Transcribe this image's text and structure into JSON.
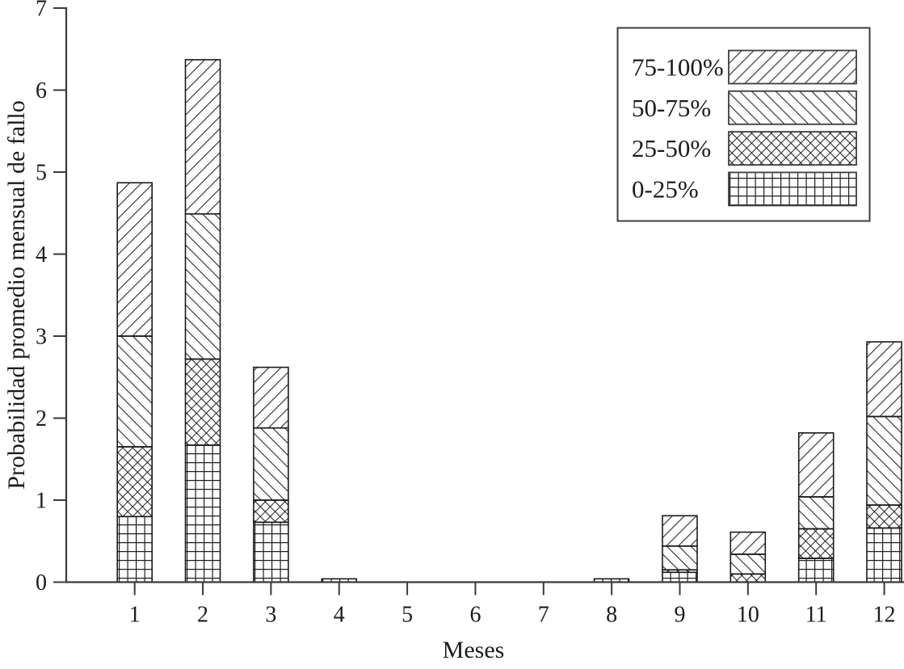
{
  "chart_data": {
    "type": "bar",
    "stacked": true,
    "title": "",
    "xlabel": "Meses",
    "ylabel": "Probabilidad promedio mensual de fallo",
    "ylim": [
      0,
      7
    ],
    "yticks": [
      0,
      1,
      2,
      3,
      4,
      5,
      6,
      7
    ],
    "categories": [
      "1",
      "2",
      "3",
      "4",
      "5",
      "6",
      "7",
      "8",
      "9",
      "10",
      "11",
      "12"
    ],
    "series": [
      {
        "name": "0-25%",
        "hatch": "grid",
        "values": [
          0.8,
          1.67,
          0.73,
          0.04,
          0,
          0,
          0,
          0.04,
          0.12,
          0.0,
          0.29,
          0.66
        ]
      },
      {
        "name": "25-50%",
        "hatch": "cross-diagonal",
        "values": [
          0.85,
          1.05,
          0.27,
          0,
          0,
          0,
          0,
          0,
          0.03,
          0.1,
          0.36,
          0.28
        ]
      },
      {
        "name": "50-75%",
        "hatch": "diagonal-down",
        "values": [
          1.35,
          1.77,
          0.88,
          0,
          0,
          0,
          0,
          0,
          0.29,
          0.24,
          0.39,
          1.08
        ]
      },
      {
        "name": "75-100%",
        "hatch": "diagonal-up",
        "values": [
          1.87,
          1.88,
          0.74,
          0,
          0,
          0,
          0,
          0,
          0.37,
          0.27,
          0.78,
          0.91
        ]
      }
    ],
    "totals_by_month": [
      4.87,
      6.37,
      2.62,
      0.04,
      0,
      0,
      0,
      0.04,
      0.81,
      0.61,
      1.82,
      2.93
    ],
    "legend": {
      "position": "top-right",
      "entries_top_to_bottom": [
        "75-100%",
        "50-75%",
        "25-50%",
        "0-25%"
      ]
    },
    "grid": false,
    "colors": {
      "background": "#ffffff",
      "axis": "#3a3a3a",
      "bar_outline": "#1a1a1a",
      "hatch_line": "#2b2b2b",
      "text": "#1c1c1c",
      "bar_fill": "#ffffff"
    }
  }
}
